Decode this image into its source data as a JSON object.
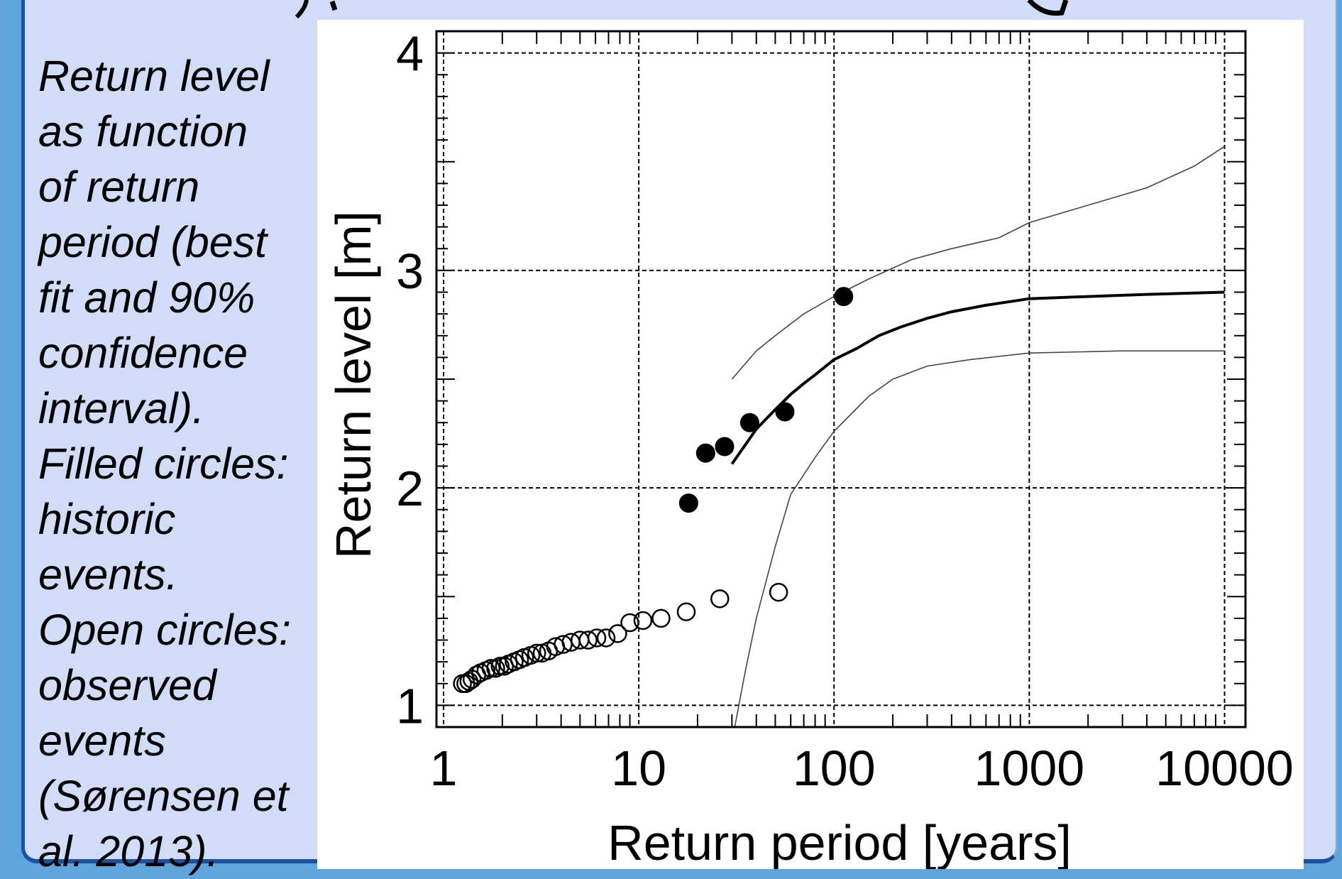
{
  "caption": {
    "lines": [
      "Return level",
      "as function",
      "of return",
      "period (best",
      "fit and 90%",
      "confidence",
      "interval).",
      "Filled circles:",
      "historic",
      "events.",
      "Open circles:",
      "observed",
      "events",
      "(Sørensen et",
      "al. 2013)."
    ]
  },
  "chart_data": {
    "type": "scatter",
    "title": "",
    "xlabel": "Return period [years]",
    "ylabel": "Return level [m]",
    "x_scale": "log",
    "xlim": [
      0.92,
      12800
    ],
    "ylim": [
      0.9,
      4.1
    ],
    "x_ticks": [
      1,
      10,
      100,
      1000,
      10000
    ],
    "x_tick_labels": [
      "1",
      "10",
      "100",
      "1000",
      "10000"
    ],
    "y_ticks": [
      1,
      2,
      3,
      4
    ],
    "y_tick_labels": [
      "1",
      "2",
      "3",
      "4"
    ],
    "grid": true,
    "legend": "none",
    "series": [
      {
        "kind": "filled-markers",
        "color": "#000000",
        "points": [
          [
            18,
            1.93
          ],
          [
            22,
            2.16
          ],
          [
            27.5,
            2.19
          ],
          [
            37,
            2.3
          ],
          [
            56,
            2.35
          ],
          [
            112,
            2.88
          ]
        ]
      },
      {
        "kind": "open-markers",
        "color": "#000000",
        "points": [
          [
            1.25,
            1.1
          ],
          [
            1.3,
            1.1
          ],
          [
            1.35,
            1.11
          ],
          [
            1.4,
            1.12
          ],
          [
            1.48,
            1.14
          ],
          [
            1.55,
            1.15
          ],
          [
            1.65,
            1.16
          ],
          [
            1.75,
            1.17
          ],
          [
            1.85,
            1.17
          ],
          [
            1.95,
            1.18
          ],
          [
            2.05,
            1.18
          ],
          [
            2.15,
            1.19
          ],
          [
            2.3,
            1.2
          ],
          [
            2.45,
            1.21
          ],
          [
            2.6,
            1.22
          ],
          [
            2.8,
            1.23
          ],
          [
            3.0,
            1.24
          ],
          [
            3.2,
            1.24
          ],
          [
            3.45,
            1.25
          ],
          [
            3.75,
            1.27
          ],
          [
            4.1,
            1.28
          ],
          [
            4.5,
            1.29
          ],
          [
            5.0,
            1.3
          ],
          [
            5.5,
            1.3
          ],
          [
            6.1,
            1.31
          ],
          [
            6.8,
            1.31
          ],
          [
            7.8,
            1.33
          ],
          [
            9.0,
            1.38
          ],
          [
            10.5,
            1.39
          ],
          [
            13,
            1.4
          ],
          [
            17.5,
            1.43
          ],
          [
            26,
            1.49
          ],
          [
            52,
            1.52
          ]
        ]
      },
      {
        "kind": "line",
        "name": "",
        "style": "thick",
        "color": "#000000",
        "points": [
          [
            30,
            2.11
          ],
          [
            40,
            2.27
          ],
          [
            50,
            2.36
          ],
          [
            60,
            2.43
          ],
          [
            70,
            2.48
          ],
          [
            80,
            2.52
          ],
          [
            100,
            2.59
          ],
          [
            130,
            2.64
          ],
          [
            170,
            2.7
          ],
          [
            220,
            2.74
          ],
          [
            300,
            2.78
          ],
          [
            400,
            2.81
          ],
          [
            600,
            2.84
          ],
          [
            1000,
            2.87
          ],
          [
            2000,
            2.88
          ],
          [
            4000,
            2.89
          ],
          [
            10000,
            2.9
          ]
        ]
      },
      {
        "kind": "line",
        "name": "",
        "style": "thin",
        "color": "#444444",
        "points": [
          [
            30,
            2.5
          ],
          [
            40,
            2.63
          ],
          [
            50,
            2.7
          ],
          [
            70,
            2.8
          ],
          [
            100,
            2.88
          ],
          [
            150,
            2.96
          ],
          [
            250,
            3.05
          ],
          [
            400,
            3.1
          ],
          [
            700,
            3.15
          ],
          [
            1000,
            3.22
          ],
          [
            2000,
            3.3
          ],
          [
            4000,
            3.38
          ],
          [
            7000,
            3.48
          ],
          [
            10000,
            3.57
          ]
        ]
      },
      {
        "kind": "line",
        "name": "",
        "style": "thin",
        "color": "#444444",
        "points": [
          [
            31,
            0.9
          ],
          [
            35,
            1.15
          ],
          [
            40,
            1.4
          ],
          [
            50,
            1.73
          ],
          [
            60,
            1.97
          ],
          [
            80,
            2.14
          ],
          [
            100,
            2.26
          ],
          [
            150,
            2.42
          ],
          [
            200,
            2.5
          ],
          [
            300,
            2.56
          ],
          [
            500,
            2.59
          ],
          [
            1000,
            2.62
          ],
          [
            3000,
            2.63
          ],
          [
            10000,
            2.63
          ]
        ]
      }
    ]
  }
}
